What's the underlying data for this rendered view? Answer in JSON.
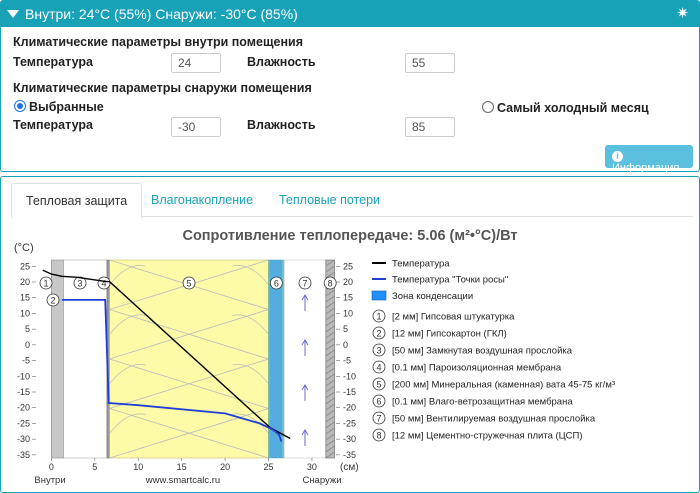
{
  "header": {
    "title": "Внутри: 24°C (55%) Снаружи: -30°C (85%)"
  },
  "inside": {
    "section_title": "Климатические параметры внутри помещения",
    "temp_label": "Температура",
    "temp_value": "24",
    "humidity_label": "Влажность",
    "humidity_value": "55"
  },
  "outside": {
    "section_title": "Климатические параметры снаружи помещения",
    "option_selected": "Выбранные",
    "option_coldest": "Самый холодный месяц",
    "temp_label": "Температура",
    "temp_value": "-30",
    "humidity_label": "Влажность",
    "humidity_value": "85"
  },
  "info_button": "Информация",
  "tabs": [
    {
      "label": "Тепловая защита",
      "active": true
    },
    {
      "label": "Влагонакопление",
      "active": false
    },
    {
      "label": "Тепловые потери",
      "active": false
    }
  ],
  "chart_data": {
    "type": "line",
    "title": "Сопротивление теплопередаче: 5.06 (м²•°С)/Вт",
    "ylabel": "(°С)",
    "xlabel": "(см)",
    "x_left_label": "Внутри",
    "x_right_label": "Снаружи",
    "watermark": "www.smartcalc.ru",
    "xlim": [
      -2,
      33
    ],
    "ylim": [
      -36,
      27
    ],
    "xticks": [
      0,
      5,
      10,
      15,
      20,
      25,
      30
    ],
    "yticks": [
      25,
      20,
      15,
      10,
      5,
      0,
      -5,
      -10,
      -15,
      -20,
      -25,
      -30,
      -35
    ],
    "series": [
      {
        "name": "Температура",
        "color": "#000000",
        "points": [
          [
            -1,
            23.8
          ],
          [
            0,
            22.5
          ],
          [
            1.2,
            21.8
          ],
          [
            3,
            21.5
          ],
          [
            6.2,
            20.2
          ],
          [
            6.7,
            20.1
          ],
          [
            25.2,
            -26.4
          ],
          [
            27.5,
            -29.8
          ]
        ]
      },
      {
        "name": "Температура \"Точки росы\"",
        "color": "#1f3fd6",
        "points": [
          [
            1.2,
            14.3
          ],
          [
            6.2,
            14.3
          ],
          [
            6.6,
            -18.5
          ],
          [
            10,
            -19.2
          ],
          [
            20,
            -21.8
          ],
          [
            24,
            -25
          ],
          [
            25.5,
            -27
          ],
          [
            26.2,
            -28.5
          ],
          [
            26.5,
            -30.8
          ]
        ]
      }
    ],
    "condensation_zone": {
      "name": "Зона конденсации",
      "color": "#1e90ff",
      "x": [
        25.1,
        26.6
      ]
    },
    "layers": [
      {
        "num": "1",
        "desc": "[2 мм] Гипсовая штукатурка",
        "x": [
          0,
          0.2
        ]
      },
      {
        "num": "2",
        "desc": "[12 мм] Гипсокартон (ГКЛ)",
        "x": [
          0.2,
          1.4
        ]
      },
      {
        "num": "3",
        "desc": "[50 мм] Замкнутая воздушная прослойка",
        "x": [
          1.4,
          6.4
        ]
      },
      {
        "num": "4",
        "desc": "[0.1 мм] Пароизоляционная мембрана",
        "x": [
          6.4,
          6.7
        ]
      },
      {
        "num": "5",
        "desc": "[200 мм] Минеральная (каменная) вата 45-75 кг/м³",
        "x": [
          6.7,
          25.0
        ]
      },
      {
        "num": "6",
        "desc": "[0.1 мм] Влаго-ветрозащитная мембрана",
        "x": [
          25.0,
          26.8
        ]
      },
      {
        "num": "7",
        "desc": "[50 мм] Вентилируемая воздушная прослойка",
        "x": [
          26.8,
          31.6
        ]
      },
      {
        "num": "8",
        "desc": "[12 мм] Цементно-стружечная плита (ЦСП)",
        "x": [
          31.6,
          32.6
        ]
      }
    ]
  }
}
